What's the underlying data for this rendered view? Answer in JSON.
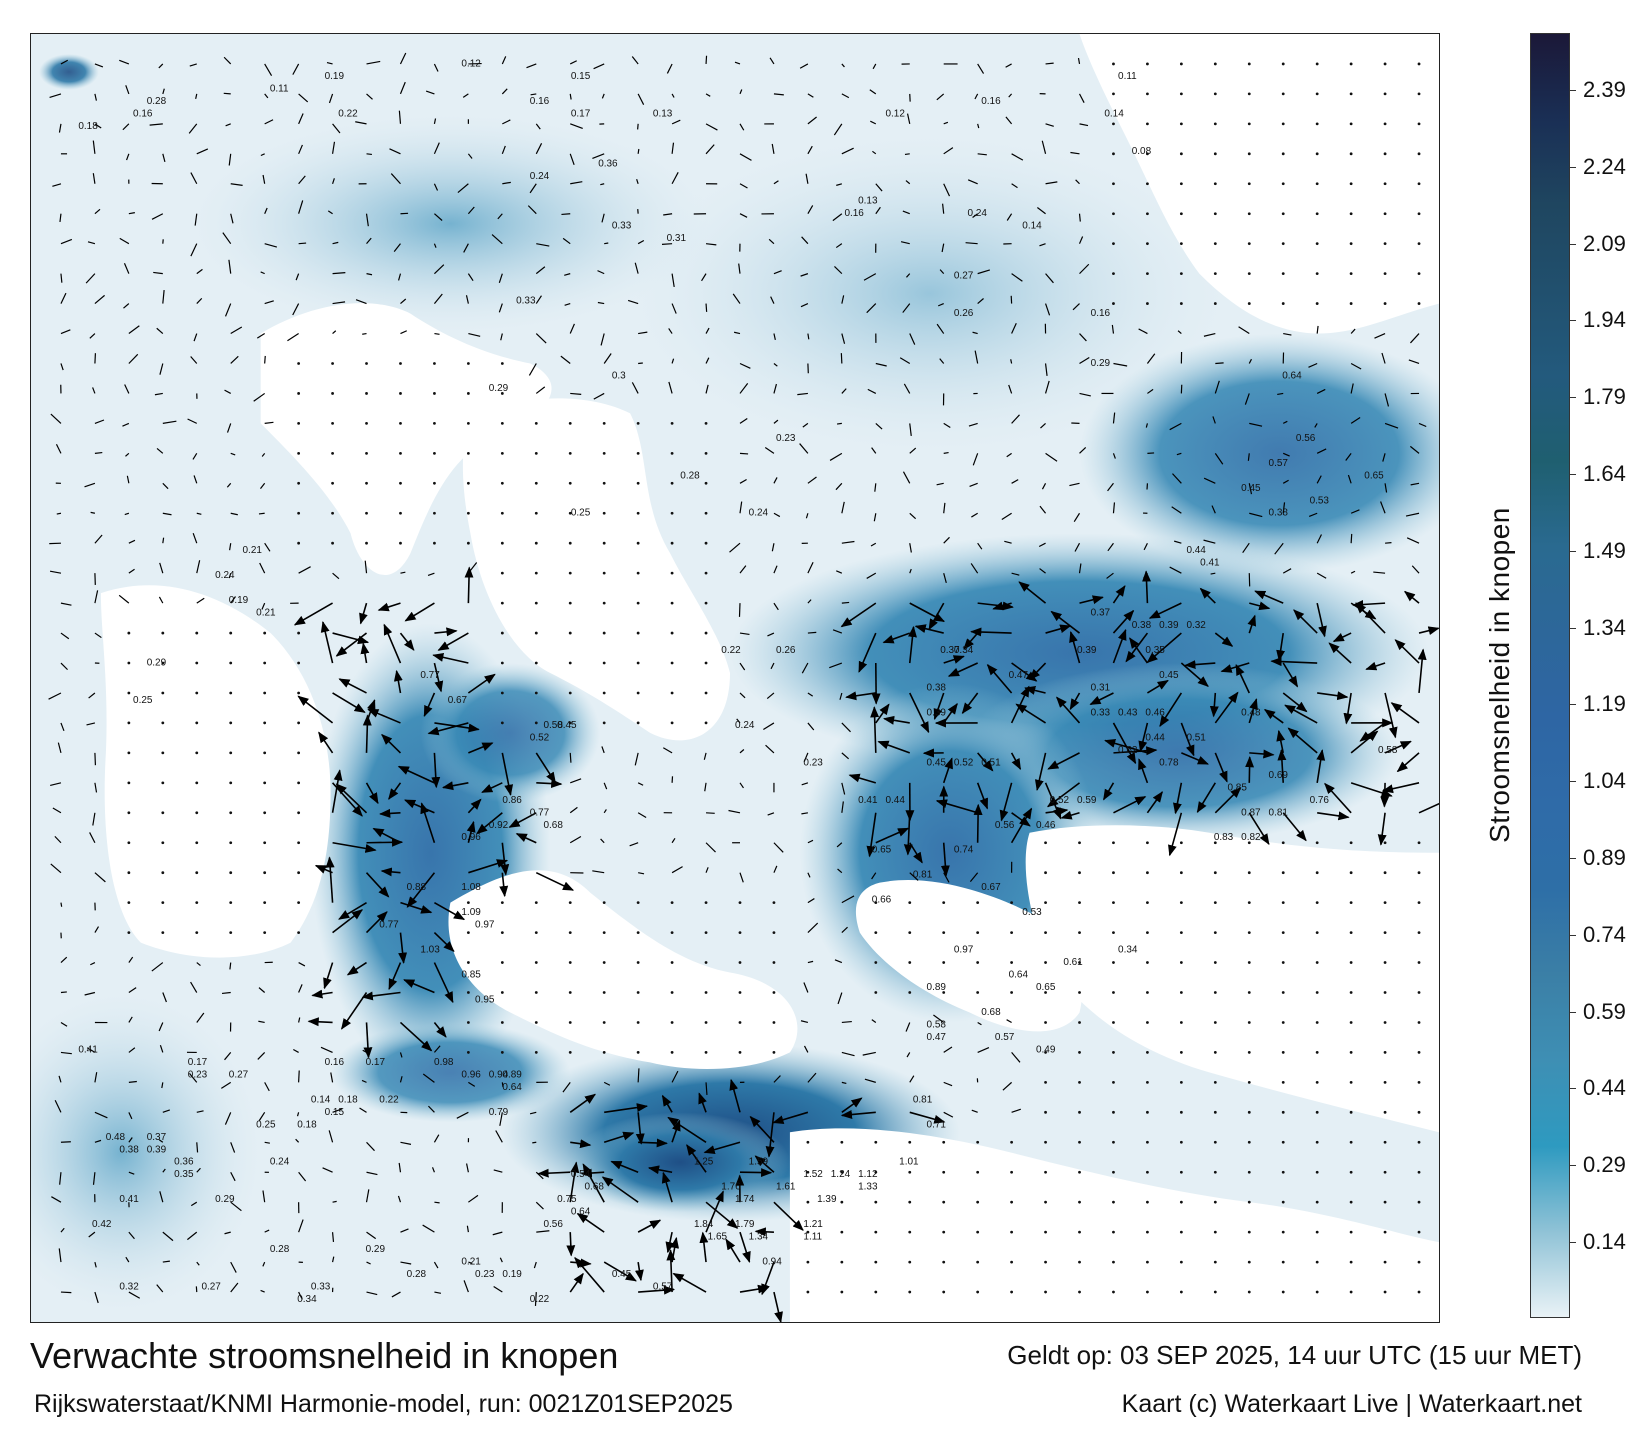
{
  "title": "Verwachte stroomsnelheid in knopen",
  "subtitle": "Rijkswaterstaat/KNMI Harmonie-model, run: 0021Z01SEP2025",
  "valid_time": "Geldt op: 03 SEP 2025, 14 uur UTC (15 uur MET)",
  "credit": "Kaart (c) Waterkaart Live | Waterkaart.net",
  "colorbar": {
    "label": "Stroomsnelheid in knopen",
    "ticks": [
      "2.39",
      "2.24",
      "2.09",
      "1.94",
      "1.79",
      "1.64",
      "1.49",
      "1.34",
      "1.19",
      "1.04",
      "0.89",
      "0.74",
      "0.59",
      "0.44",
      "0.29",
      "0.14"
    ],
    "colors": [
      "#1b1838",
      "#1a2f55",
      "#1f4660",
      "#21506e",
      "#235a7d",
      "#1f5f70",
      "#2a6a90",
      "#2d679a",
      "#2e66a4",
      "#2f6ba8",
      "#2e6fa7",
      "#3b7fa6",
      "#3e8fb4",
      "#2e9ac0",
      "#8fc2d6",
      "#e9f2f6"
    ]
  },
  "map": {
    "land_color": "#ffffff",
    "water_light": "#e6f0f6",
    "water_mid": "#8ec0d6",
    "water_strong": "#2e79a8",
    "water_max": "#1f4f86",
    "arrow_color": "#000000",
    "speed_labels": [
      {
        "v": "0.18",
        "gx": 0.02,
        "gy": 0.06
      },
      {
        "v": "0.28",
        "gx": 0.07,
        "gy": 0.04
      },
      {
        "v": "0.16",
        "gx": 0.06,
        "gy": 0.05
      },
      {
        "v": "0.11",
        "gx": 0.16,
        "gy": 0.03
      },
      {
        "v": "0.19",
        "gx": 0.2,
        "gy": 0.02
      },
      {
        "v": "0.22",
        "gx": 0.21,
        "gy": 0.05
      },
      {
        "v": "0.12",
        "gx": 0.3,
        "gy": 0.01
      },
      {
        "v": "0.15",
        "gx": 0.38,
        "gy": 0.02
      },
      {
        "v": "0.17",
        "gx": 0.38,
        "gy": 0.05
      },
      {
        "v": "0.13",
        "gx": 0.44,
        "gy": 0.05
      },
      {
        "v": "0.16",
        "gx": 0.35,
        "gy": 0.04
      },
      {
        "v": "0.24",
        "gx": 0.35,
        "gy": 0.1
      },
      {
        "v": "0.36",
        "gx": 0.4,
        "gy": 0.09
      },
      {
        "v": "0.33",
        "gx": 0.41,
        "gy": 0.14
      },
      {
        "v": "0.31",
        "gx": 0.45,
        "gy": 0.15
      },
      {
        "v": "0.12",
        "gx": 0.61,
        "gy": 0.05
      },
      {
        "v": "0.16",
        "gx": 0.68,
        "gy": 0.04
      },
      {
        "v": "0.14",
        "gx": 0.77,
        "gy": 0.05
      },
      {
        "v": "0.11",
        "gx": 0.78,
        "gy": 0.02
      },
      {
        "v": "0.08",
        "gx": 0.79,
        "gy": 0.08
      },
      {
        "v": "0.13",
        "gx": 0.59,
        "gy": 0.12
      },
      {
        "v": "0.16",
        "gx": 0.58,
        "gy": 0.13
      },
      {
        "v": "0.24",
        "gx": 0.67,
        "gy": 0.13
      },
      {
        "v": "0.27",
        "gx": 0.66,
        "gy": 0.18
      },
      {
        "v": "0.26",
        "gx": 0.66,
        "gy": 0.21
      },
      {
        "v": "0.14",
        "gx": 0.71,
        "gy": 0.14
      },
      {
        "v": "0.16",
        "gx": 0.76,
        "gy": 0.21
      },
      {
        "v": "0.29",
        "gx": 0.76,
        "gy": 0.25
      },
      {
        "v": "0.64",
        "gx": 0.9,
        "gy": 0.26
      },
      {
        "v": "0.56",
        "gx": 0.91,
        "gy": 0.31
      },
      {
        "v": "0.57",
        "gx": 0.89,
        "gy": 0.33
      },
      {
        "v": "0.65",
        "gx": 0.96,
        "gy": 0.34
      },
      {
        "v": "0.45",
        "gx": 0.87,
        "gy": 0.35
      },
      {
        "v": "0.53",
        "gx": 0.92,
        "gy": 0.36
      },
      {
        "v": "0.38",
        "gx": 0.89,
        "gy": 0.37
      },
      {
        "v": "0.44",
        "gx": 0.83,
        "gy": 0.4
      },
      {
        "v": "0.41",
        "gx": 0.84,
        "gy": 0.41
      },
      {
        "v": "0.37",
        "gx": 0.76,
        "gy": 0.45
      },
      {
        "v": "0.39",
        "gx": 0.75,
        "gy": 0.48
      },
      {
        "v": "0.45",
        "gx": 0.81,
        "gy": 0.5
      },
      {
        "v": "0.47",
        "gx": 0.7,
        "gy": 0.5
      },
      {
        "v": "0.48",
        "gx": 0.87,
        "gy": 0.53
      },
      {
        "v": "0.51",
        "gx": 0.83,
        "gy": 0.55
      },
      {
        "v": "0.44",
        "gx": 0.8,
        "gy": 0.55
      },
      {
        "v": "0.58",
        "gx": 0.97,
        "gy": 0.56
      },
      {
        "v": "0.62",
        "gx": 0.78,
        "gy": 0.56
      },
      {
        "v": "0.78",
        "gx": 0.81,
        "gy": 0.57
      },
      {
        "v": "0.52",
        "gx": 0.66,
        "gy": 0.57
      },
      {
        "v": "0.51",
        "gx": 0.68,
        "gy": 0.57
      },
      {
        "v": "0.69",
        "gx": 0.89,
        "gy": 0.58
      },
      {
        "v": "0.85",
        "gx": 0.86,
        "gy": 0.59
      },
      {
        "v": "0.87",
        "gx": 0.87,
        "gy": 0.61
      },
      {
        "v": "0.81",
        "gx": 0.89,
        "gy": 0.61
      },
      {
        "v": "0.76",
        "gx": 0.92,
        "gy": 0.6
      },
      {
        "v": "0.59",
        "gx": 0.75,
        "gy": 0.6
      },
      {
        "v": "0.52",
        "gx": 0.73,
        "gy": 0.6
      },
      {
        "v": "0.46",
        "gx": 0.72,
        "gy": 0.62
      },
      {
        "v": "0.56",
        "gx": 0.69,
        "gy": 0.62
      },
      {
        "v": "0.83",
        "gx": 0.85,
        "gy": 0.63
      },
      {
        "v": "0.82",
        "gx": 0.87,
        "gy": 0.63
      },
      {
        "v": "0.74",
        "gx": 0.66,
        "gy": 0.64
      },
      {
        "v": "0.81",
        "gx": 0.63,
        "gy": 0.66
      },
      {
        "v": "0.65",
        "gx": 0.6,
        "gy": 0.64
      },
      {
        "v": "0.66",
        "gx": 0.6,
        "gy": 0.68
      },
      {
        "v": "0.67",
        "gx": 0.68,
        "gy": 0.67
      },
      {
        "v": "0.53",
        "gx": 0.71,
        "gy": 0.69
      },
      {
        "v": "0.64",
        "gx": 0.7,
        "gy": 0.74
      },
      {
        "v": "0.65",
        "gx": 0.72,
        "gy": 0.75
      },
      {
        "v": "0.89",
        "gx": 0.64,
        "gy": 0.75
      },
      {
        "v": "0.97",
        "gx": 0.66,
        "gy": 0.72
      },
      {
        "v": "0.68",
        "gx": 0.68,
        "gy": 0.77
      },
      {
        "v": "0.57",
        "gx": 0.69,
        "gy": 0.79
      },
      {
        "v": "0.49",
        "gx": 0.72,
        "gy": 0.8
      },
      {
        "v": "0.58",
        "gx": 0.64,
        "gy": 0.78
      },
      {
        "v": "0.47",
        "gx": 0.64,
        "gy": 0.79
      },
      {
        "v": "0.61",
        "gx": 0.74,
        "gy": 0.73
      },
      {
        "v": "0.34",
        "gx": 0.78,
        "gy": 0.72
      },
      {
        "v": "0.81",
        "gx": 0.63,
        "gy": 0.84
      },
      {
        "v": "0.71",
        "gx": 0.64,
        "gy": 0.86
      },
      {
        "v": "1.01",
        "gx": 0.62,
        "gy": 0.89
      },
      {
        "v": "1.12",
        "gx": 0.59,
        "gy": 0.9
      },
      {
        "v": "1.24",
        "gx": 0.57,
        "gy": 0.9
      },
      {
        "v": "1.33",
        "gx": 0.59,
        "gy": 0.91
      },
      {
        "v": "1.52",
        "gx": 0.55,
        "gy": 0.9
      },
      {
        "v": "1.61",
        "gx": 0.53,
        "gy": 0.91
      },
      {
        "v": "1.76",
        "gx": 0.49,
        "gy": 0.91
      },
      {
        "v": "1.74",
        "gx": 0.5,
        "gy": 0.92
      },
      {
        "v": "1.79",
        "gx": 0.5,
        "gy": 0.94
      },
      {
        "v": "1.84",
        "gx": 0.47,
        "gy": 0.94
      },
      {
        "v": "1.65",
        "gx": 0.48,
        "gy": 0.95
      },
      {
        "v": "1.59",
        "gx": 0.51,
        "gy": 0.89
      },
      {
        "v": "1.25",
        "gx": 0.47,
        "gy": 0.89
      },
      {
        "v": "1.39",
        "gx": 0.56,
        "gy": 0.92
      },
      {
        "v": "1.21",
        "gx": 0.55,
        "gy": 0.94
      },
      {
        "v": "1.34",
        "gx": 0.51,
        "gy": 0.95
      },
      {
        "v": "1.11",
        "gx": 0.55,
        "gy": 0.95
      },
      {
        "v": "0.94",
        "gx": 0.52,
        "gy": 0.97
      },
      {
        "v": "0.54",
        "gx": 0.38,
        "gy": 0.9
      },
      {
        "v": "0.68",
        "gx": 0.39,
        "gy": 0.91
      },
      {
        "v": "0.75",
        "gx": 0.37,
        "gy": 0.92
      },
      {
        "v": "0.64",
        "gx": 0.38,
        "gy": 0.93
      },
      {
        "v": "0.56",
        "gx": 0.36,
        "gy": 0.94
      },
      {
        "v": "0.45",
        "gx": 0.41,
        "gy": 0.98
      },
      {
        "v": "0.57",
        "gx": 0.44,
        "gy": 0.99
      },
      {
        "v": "0.98",
        "gx": 0.28,
        "gy": 0.81
      },
      {
        "v": "0.96",
        "gx": 0.3,
        "gy": 0.82
      },
      {
        "v": "0.94",
        "gx": 0.32,
        "gy": 0.82
      },
      {
        "v": "0.89",
        "gx": 0.33,
        "gy": 0.82
      },
      {
        "v": "0.79",
        "gx": 0.32,
        "gy": 0.85
      },
      {
        "v": "0.64",
        "gx": 0.33,
        "gy": 0.83
      },
      {
        "v": "1.03",
        "gx": 0.27,
        "gy": 0.72
      },
      {
        "v": "0.96",
        "gx": 0.3,
        "gy": 0.63
      },
      {
        "v": "1.08",
        "gx": 0.3,
        "gy": 0.67
      },
      {
        "v": "1.09",
        "gx": 0.3,
        "gy": 0.69
      },
      {
        "v": "0.97",
        "gx": 0.31,
        "gy": 0.7
      },
      {
        "v": "0.88",
        "gx": 0.26,
        "gy": 0.67
      },
      {
        "v": "0.77",
        "gx": 0.24,
        "gy": 0.7
      },
      {
        "v": "0.85",
        "gx": 0.3,
        "gy": 0.74
      },
      {
        "v": "0.95",
        "gx": 0.31,
        "gy": 0.76
      },
      {
        "v": "0.86",
        "gx": 0.33,
        "gy": 0.6
      },
      {
        "v": "0.92",
        "gx": 0.32,
        "gy": 0.62
      },
      {
        "v": "0.77",
        "gx": 0.35,
        "gy": 0.61
      },
      {
        "v": "0.68",
        "gx": 0.36,
        "gy": 0.62
      },
      {
        "v": "0.77",
        "gx": 0.27,
        "gy": 0.5
      },
      {
        "v": "0.67",
        "gx": 0.29,
        "gy": 0.52
      },
      {
        "v": "0.58",
        "gx": 0.36,
        "gy": 0.54
      },
      {
        "v": "0.52",
        "gx": 0.35,
        "gy": 0.55
      },
      {
        "v": "0.45",
        "gx": 0.37,
        "gy": 0.54
      },
      {
        "v": "0.29",
        "gx": 0.32,
        "gy": 0.27
      },
      {
        "v": "0.33",
        "gx": 0.34,
        "gy": 0.2
      },
      {
        "v": "0.3",
        "gx": 0.41,
        "gy": 0.26
      },
      {
        "v": "0.25",
        "gx": 0.38,
        "gy": 0.37
      },
      {
        "v": "0.28",
        "gx": 0.46,
        "gy": 0.34
      },
      {
        "v": "0.23",
        "gx": 0.53,
        "gy": 0.31
      },
      {
        "v": "0.24",
        "gx": 0.51,
        "gy": 0.37
      },
      {
        "v": "0.26",
        "gx": 0.53,
        "gy": 0.48
      },
      {
        "v": "0.22",
        "gx": 0.49,
        "gy": 0.48
      },
      {
        "v": "0.24",
        "gx": 0.5,
        "gy": 0.54
      },
      {
        "v": "0.23",
        "gx": 0.55,
        "gy": 0.57
      },
      {
        "v": "0.41",
        "gx": 0.59,
        "gy": 0.6
      },
      {
        "v": "0.44",
        "gx": 0.61,
        "gy": 0.6
      },
      {
        "v": "0.38",
        "gx": 0.64,
        "gy": 0.51
      },
      {
        "v": "0.39",
        "gx": 0.64,
        "gy": 0.53
      },
      {
        "v": "0.45",
        "gx": 0.64,
        "gy": 0.57
      },
      {
        "v": "0.33",
        "gx": 0.76,
        "gy": 0.53
      },
      {
        "v": "0.43",
        "gx": 0.78,
        "gy": 0.53
      },
      {
        "v": "0.46",
        "gx": 0.8,
        "gy": 0.53
      },
      {
        "v": "0.31",
        "gx": 0.76,
        "gy": 0.51
      },
      {
        "v": "0.38",
        "gx": 0.79,
        "gy": 0.46
      },
      {
        "v": "0.39",
        "gx": 0.81,
        "gy": 0.46
      },
      {
        "v": "0.35",
        "gx": 0.8,
        "gy": 0.48
      },
      {
        "v": "0.32",
        "gx": 0.83,
        "gy": 0.46
      },
      {
        "v": "0.37",
        "gx": 0.65,
        "gy": 0.48
      },
      {
        "v": "0.34",
        "gx": 0.66,
        "gy": 0.48
      },
      {
        "v": "0.21",
        "gx": 0.14,
        "gy": 0.4
      },
      {
        "v": "0.24",
        "gx": 0.12,
        "gy": 0.42
      },
      {
        "v": "0.19",
        "gx": 0.13,
        "gy": 0.44
      },
      {
        "v": "0.21",
        "gx": 0.15,
        "gy": 0.45
      },
      {
        "v": "0.29",
        "gx": 0.07,
        "gy": 0.49
      },
      {
        "v": "0.25",
        "gx": 0.06,
        "gy": 0.52
      },
      {
        "v": "0.41",
        "gx": 0.02,
        "gy": 0.8
      },
      {
        "v": "0.48",
        "gx": 0.04,
        "gy": 0.87
      },
      {
        "v": "0.38",
        "gx": 0.05,
        "gy": 0.88
      },
      {
        "v": "0.37",
        "gx": 0.07,
        "gy": 0.87
      },
      {
        "v": "0.39",
        "gx": 0.07,
        "gy": 0.88
      },
      {
        "v": "0.36",
        "gx": 0.09,
        "gy": 0.89
      },
      {
        "v": "0.35",
        "gx": 0.09,
        "gy": 0.9
      },
      {
        "v": "0.41",
        "gx": 0.05,
        "gy": 0.92
      },
      {
        "v": "0.42",
        "gx": 0.03,
        "gy": 0.94
      },
      {
        "v": "0.32",
        "gx": 0.05,
        "gy": 0.99
      },
      {
        "v": "0.24",
        "gx": 0.16,
        "gy": 0.89
      },
      {
        "v": "0.25",
        "gx": 0.15,
        "gy": 0.86
      },
      {
        "v": "0.29",
        "gx": 0.12,
        "gy": 0.92
      },
      {
        "v": "0.28",
        "gx": 0.16,
        "gy": 0.96
      },
      {
        "v": "0.27",
        "gx": 0.11,
        "gy": 0.99
      },
      {
        "v": "0.34",
        "gx": 0.18,
        "gy": 1.0
      },
      {
        "v": "0.33",
        "gx": 0.19,
        "gy": 0.99
      },
      {
        "v": "0.22",
        "gx": 0.35,
        "gy": 1.0
      },
      {
        "v": "0.19",
        "gx": 0.33,
        "gy": 0.98
      },
      {
        "v": "0.23",
        "gx": 0.31,
        "gy": 0.98
      },
      {
        "v": "0.21",
        "gx": 0.3,
        "gy": 0.97
      },
      {
        "v": "0.29",
        "gx": 0.23,
        "gy": 0.96
      },
      {
        "v": "0.28",
        "gx": 0.26,
        "gy": 0.98
      },
      {
        "v": "0.27",
        "gx": 0.13,
        "gy": 0.82
      },
      {
        "v": "0.23",
        "gx": 0.1,
        "gy": 0.82
      },
      {
        "v": "0.17",
        "gx": 0.1,
        "gy": 0.81
      },
      {
        "v": "0.16",
        "gx": 0.2,
        "gy": 0.81
      },
      {
        "v": "0.17",
        "gx": 0.23,
        "gy": 0.81
      },
      {
        "v": "0.22",
        "gx": 0.24,
        "gy": 0.84
      },
      {
        "v": "0.14",
        "gx": 0.19,
        "gy": 0.84
      },
      {
        "v": "0.18",
        "gx": 0.21,
        "gy": 0.84
      },
      {
        "v": "0.15",
        "gx": 0.2,
        "gy": 0.85
      },
      {
        "v": "0.18",
        "gx": 0.18,
        "gy": 0.86
      }
    ]
  }
}
